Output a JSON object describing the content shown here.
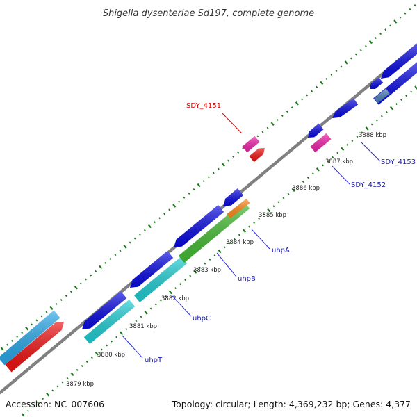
{
  "title": "Shigella dysenteriae Sd197, complete genome",
  "footer": {
    "accession": "Accession: NC_007606",
    "summary": "Topology: circular; Length: 4,369,232 bp; Genes: 4,377"
  },
  "scale_labels": [
    "3879 kbp",
    "3880 kbp",
    "3881 kbp",
    "3882 kbp",
    "3883 kbp",
    "3884 kbp",
    "3885 kbp",
    "3886 kbp",
    "3887 kbp",
    "3888 kbp"
  ],
  "gene_labels": [
    {
      "text": "SDY_4151",
      "color": "#d40000"
    },
    {
      "text": "SDY_4153",
      "color": "#1a1aa6"
    },
    {
      "text": "SDY_4152",
      "color": "#1a1aa6"
    },
    {
      "text": "uhpA",
      "color": "#1a1aa6"
    },
    {
      "text": "uhpB",
      "color": "#1a1aa6"
    },
    {
      "text": "uhpC",
      "color": "#1a1aa6"
    },
    {
      "text": "uhpT",
      "color": "#1a1aa6"
    }
  ],
  "colors": {
    "backbone": "#808080",
    "tick": "#1a7a1a",
    "blue": "#0a0ae0",
    "cyan": "#1fcdd2",
    "skyblue": "#2aa8e8",
    "red": "#ee1111",
    "magenta": "#ee22aa",
    "green": "#44bb33",
    "orange": "#ff8a1a",
    "steel": "#4a7fb8",
    "label_line_red": "#d40000",
    "label_line_blue": "#2a2ae0"
  }
}
